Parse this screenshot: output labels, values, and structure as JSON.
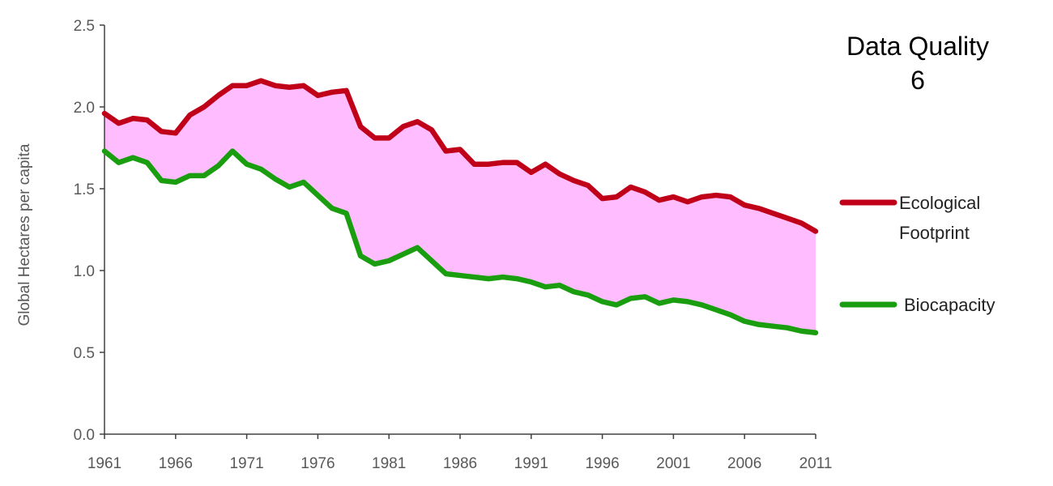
{
  "chart_data": {
    "type": "area",
    "ylabel": "Global Hectares per capita",
    "ylim": [
      0,
      2.5
    ],
    "yticks": [
      "0.0",
      "0.5",
      "1.0",
      "1.5",
      "2.0",
      "2.5"
    ],
    "xlim": [
      1961,
      2011
    ],
    "xticks": [
      "1961",
      "1966",
      "1971",
      "1976",
      "1981",
      "1986",
      "1991",
      "1996",
      "2001",
      "2006",
      "2011"
    ],
    "x": [
      1961,
      1962,
      1963,
      1964,
      1965,
      1966,
      1967,
      1968,
      1969,
      1970,
      1971,
      1972,
      1973,
      1974,
      1975,
      1976,
      1977,
      1978,
      1979,
      1980,
      1981,
      1982,
      1983,
      1984,
      1985,
      1986,
      1987,
      1988,
      1989,
      1990,
      1991,
      1992,
      1993,
      1994,
      1995,
      1996,
      1997,
      1998,
      1999,
      2000,
      2001,
      2002,
      2003,
      2004,
      2005,
      2006,
      2007,
      2008,
      2009,
      2010,
      2011
    ],
    "series": [
      {
        "name": "Ecological Footprint",
        "color": "#c00018",
        "values": [
          1.96,
          1.9,
          1.93,
          1.92,
          1.85,
          1.84,
          1.95,
          2.0,
          2.07,
          2.13,
          2.13,
          2.16,
          2.13,
          2.12,
          2.13,
          2.07,
          2.09,
          2.1,
          1.88,
          1.81,
          1.81,
          1.88,
          1.91,
          1.86,
          1.73,
          1.74,
          1.65,
          1.65,
          1.66,
          1.66,
          1.6,
          1.65,
          1.59,
          1.55,
          1.52,
          1.44,
          1.45,
          1.51,
          1.48,
          1.43,
          1.45,
          1.42,
          1.45,
          1.46,
          1.45,
          1.4,
          1.38,
          1.35,
          1.32,
          1.29,
          1.24
        ]
      },
      {
        "name": "Biocapacity",
        "color": "#1a9e10",
        "values": [
          1.73,
          1.66,
          1.69,
          1.66,
          1.55,
          1.54,
          1.58,
          1.58,
          1.64,
          1.73,
          1.65,
          1.62,
          1.56,
          1.51,
          1.54,
          1.46,
          1.38,
          1.35,
          1.09,
          1.04,
          1.06,
          1.1,
          1.14,
          1.06,
          0.98,
          0.97,
          0.96,
          0.95,
          0.96,
          0.95,
          0.93,
          0.9,
          0.91,
          0.87,
          0.85,
          0.81,
          0.79,
          0.83,
          0.84,
          0.8,
          0.82,
          0.81,
          0.79,
          0.76,
          0.73,
          0.69,
          0.67,
          0.66,
          0.65,
          0.63,
          0.62
        ]
      }
    ],
    "fill_between_color": "#ffbdff",
    "annotation": {
      "line1": "Data Quality",
      "line2": "6"
    },
    "legend": {
      "footprint_line1": "Ecological",
      "footprint_line2": "Footprint",
      "biocapacity": "Biocapacity"
    },
    "grid": false,
    "legend_placement": "right"
  }
}
